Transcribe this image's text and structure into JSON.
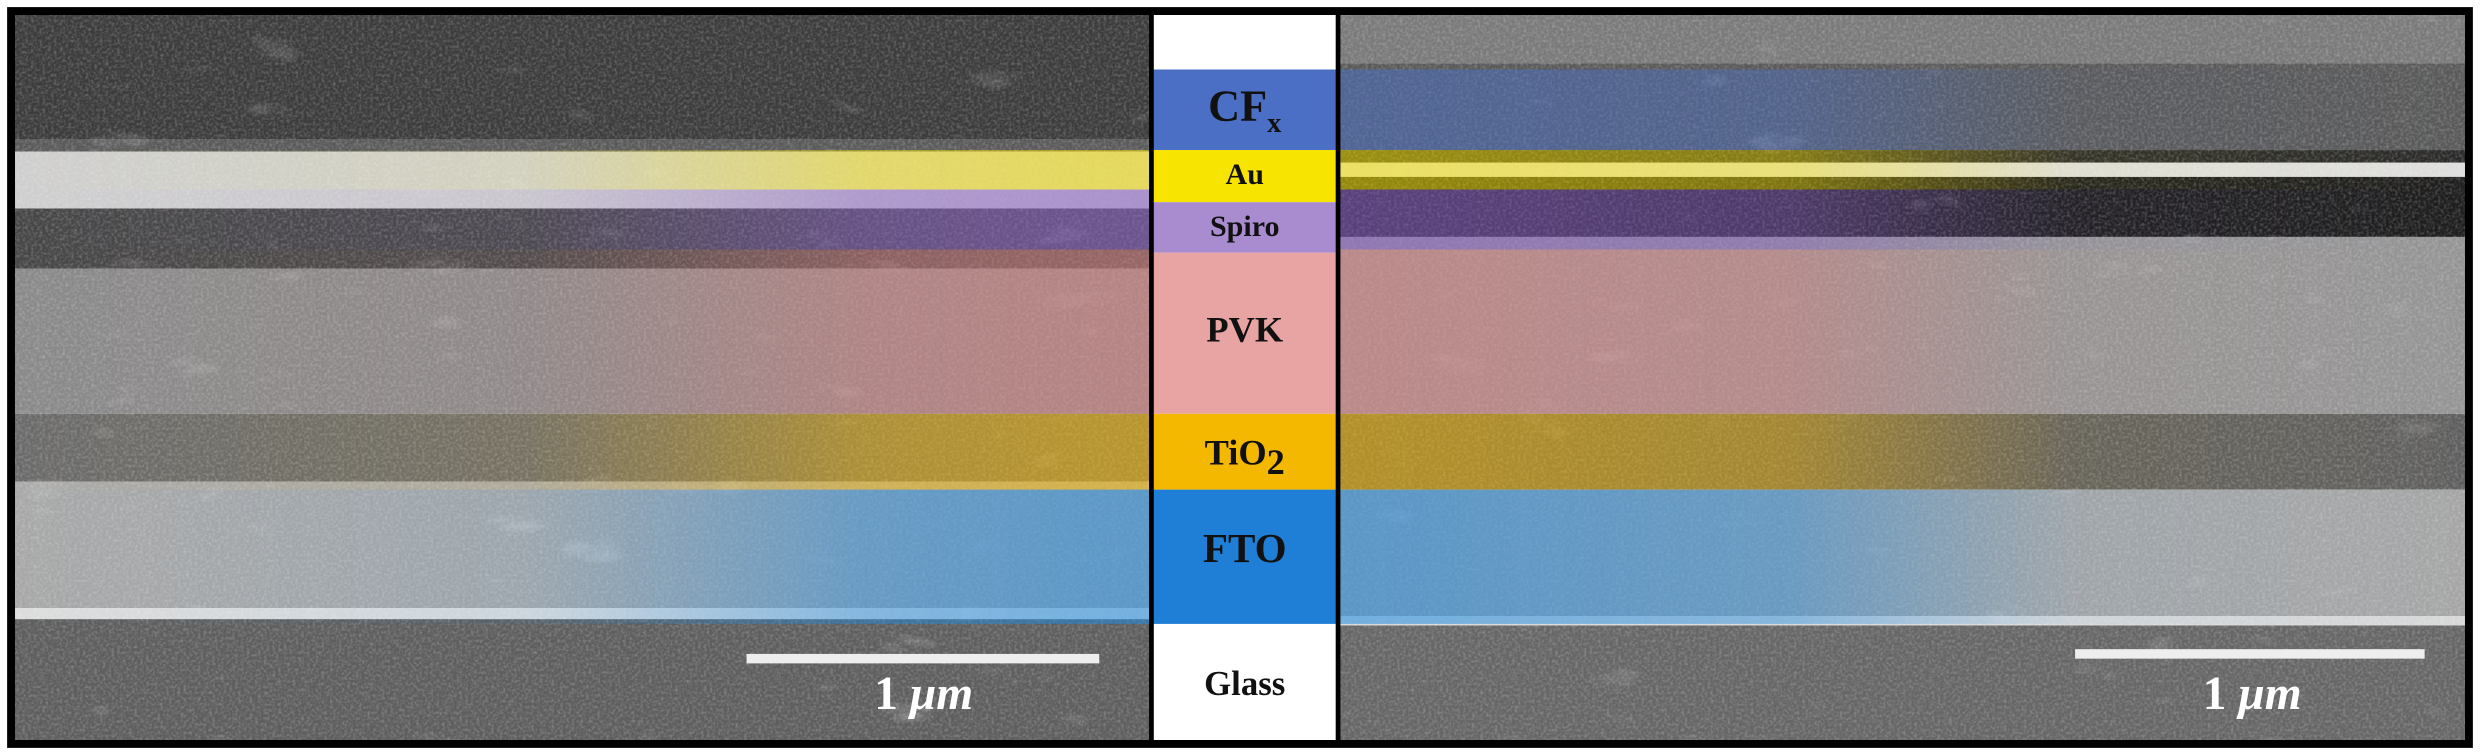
{
  "layers": [
    {
      "label": "CF",
      "subscript": "x"
    },
    {
      "label": "Au"
    },
    {
      "label": "Spiro"
    },
    {
      "label": "PVK"
    },
    {
      "label": "TiO",
      "subscript": "2"
    },
    {
      "label": "FTO"
    },
    {
      "label": "Glass"
    }
  ],
  "scale_bars": [
    {
      "number": "1",
      "unit": "μm"
    },
    {
      "number": "1",
      "unit": "μm"
    }
  ]
}
